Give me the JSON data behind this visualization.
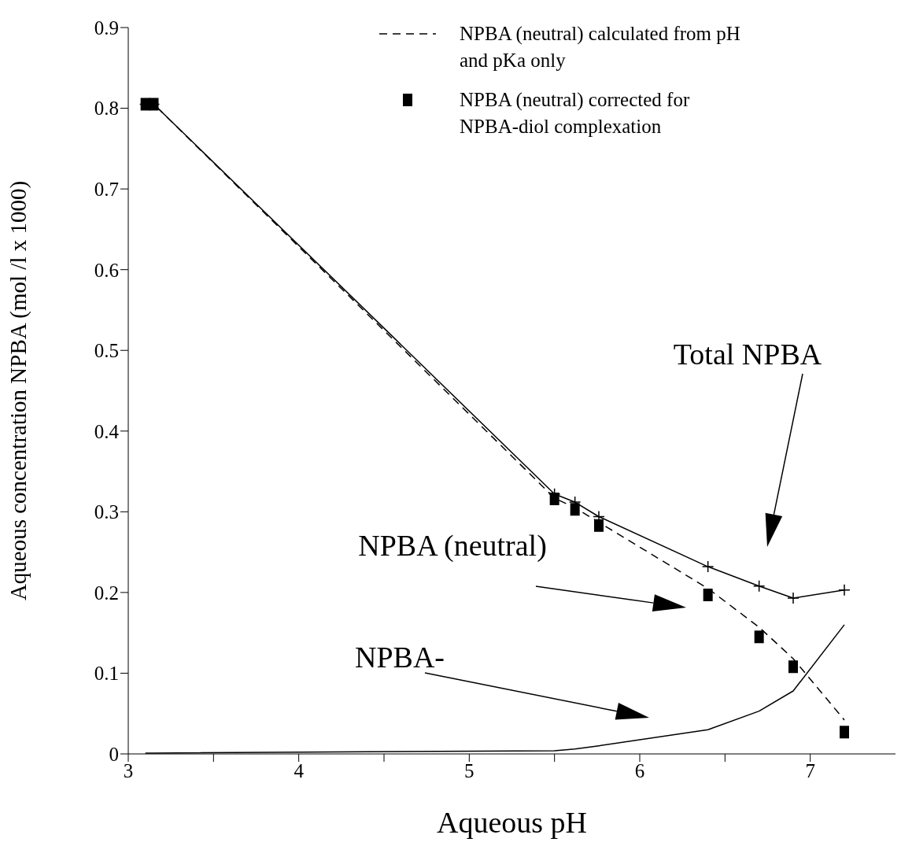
{
  "chart_data": {
    "type": "line",
    "xlabel": "Aqueous pH",
    "ylabel": "Aqueous concentration NPBA (mol /l x 1000)",
    "x": [
      3.1,
      3.15,
      5.5,
      5.62,
      5.76,
      6.4,
      6.7,
      6.9,
      7.2
    ],
    "series": [
      {
        "color": "#000000",
        "marker": "cross",
        "line_style": "solid",
        "values": [
          0.805,
          0.805,
          0.322,
          0.312,
          0.294,
          0.232,
          0.208,
          0.193,
          0.203
        ]
      },
      {
        "name": "NPBA (neutral) calculated from pH and pKa only",
        "color": "#000000",
        "marker": "none",
        "line_style": "dashed",
        "values": [
          0.805,
          0.805,
          0.317,
          0.305,
          0.287,
          0.205,
          0.157,
          0.118,
          0.042
        ]
      },
      {
        "name": "NPBA (neutral) corrected for NPBA-diol complexation",
        "type": "scatter",
        "color": "#000000",
        "marker": "square",
        "values": [
          0.805,
          0.805,
          0.316,
          0.303,
          0.283,
          0.197,
          0.145,
          0.108,
          0.027
        ]
      },
      {
        "color": "#000000",
        "marker": "none",
        "line_style": "solid",
        "values": [
          0.001,
          0.001,
          0.004,
          0.006,
          0.01,
          0.03,
          0.053,
          0.078,
          0.16
        ]
      }
    ],
    "xlim": [
      3,
      7.5
    ],
    "xticks": [
      3,
      {
        "value": 3.5,
        "label": null
      },
      4,
      {
        "value": 4.5,
        "label": null
      },
      5,
      {
        "value": 5.5,
        "label": null
      },
      6,
      {
        "value": 6.5,
        "label": null
      },
      7
    ],
    "ylim": [
      0,
      0.9
    ],
    "yticks": [
      0,
      0.1,
      0.2,
      0.3,
      0.4,
      0.5,
      0.6,
      0.7,
      0.8,
      0.9
    ],
    "grid": false,
    "legend": "top right",
    "annotations": [
      "Total NPBA",
      "NPBA (neutral)",
      "NPBA-"
    ]
  }
}
